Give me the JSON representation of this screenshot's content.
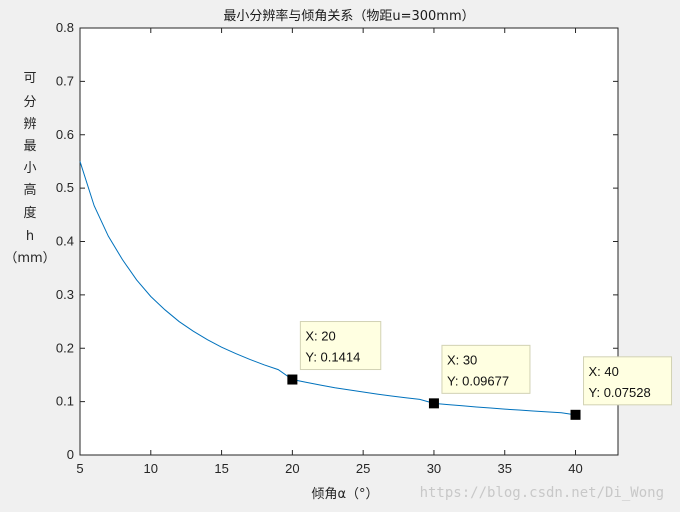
{
  "chart_data": {
    "type": "line",
    "title": "最小分辨率与倾角关系（物距u=300mm）",
    "xlabel": "倾角α（°）",
    "ylabel": [
      "可",
      "分",
      "辨",
      "最",
      "小",
      "高",
      "度",
      "h",
      "（mm）"
    ],
    "xlim": [
      5,
      43
    ],
    "ylim": [
      0,
      0.8
    ],
    "x_ticks": [
      "5",
      "10",
      "15",
      "20",
      "25",
      "30",
      "35",
      "40"
    ],
    "y_ticks": [
      "0",
      "0.1",
      "0.2",
      "0.3",
      "0.4",
      "0.5",
      "0.6",
      "0.7",
      "0.8"
    ],
    "grid": false,
    "line_color": "#0072bd",
    "series": [
      {
        "x": [
          5,
          6,
          7,
          8,
          9,
          10,
          11,
          12,
          13,
          14,
          15,
          16,
          17,
          18,
          19,
          20,
          21,
          22,
          23,
          24,
          25,
          26,
          27,
          28,
          29,
          30,
          31,
          32,
          33,
          34,
          35,
          36,
          37,
          38,
          39,
          40
        ],
        "y": [
          0.55,
          0.467,
          0.41,
          0.366,
          0.328,
          0.297,
          0.272,
          0.25,
          0.232,
          0.216,
          0.202,
          0.19,
          0.179,
          0.169,
          0.16,
          0.1414,
          0.136,
          0.131,
          0.126,
          0.122,
          0.118,
          0.114,
          0.1105,
          0.1072,
          0.1042,
          0.09677,
          0.0944,
          0.0922,
          0.09,
          0.088,
          0.086,
          0.0842,
          0.0824,
          0.0807,
          0.0791,
          0.07528
        ]
      }
    ],
    "datatips": [
      {
        "x": 20,
        "y": 0.1414,
        "x_text": "X: 20",
        "y_text": "Y: 0.1414"
      },
      {
        "x": 30,
        "y": 0.09677,
        "x_text": "X: 30",
        "y_text": "Y: 0.09677"
      },
      {
        "x": 40,
        "y": 0.07528,
        "x_text": "X: 40",
        "y_text": "Y: 0.07528"
      }
    ]
  },
  "watermark": "https://blog.csdn.net/Di_Wong"
}
